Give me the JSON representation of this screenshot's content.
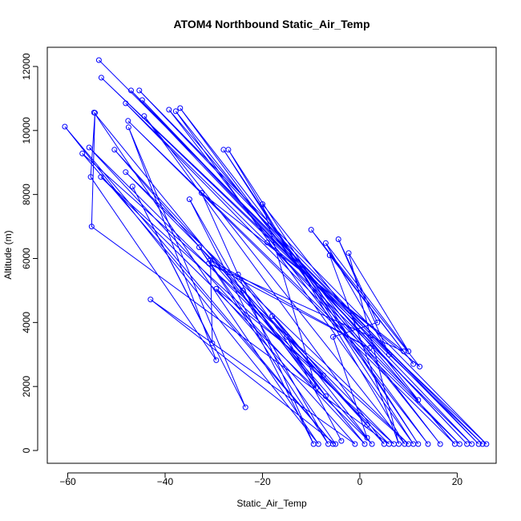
{
  "chart_data": {
    "type": "scatter",
    "title": "ATOM4 Northbound Static_Air_Temp",
    "xlabel": "Static_Air_Temp",
    "ylabel": "Altitude (m)",
    "xlim": [
      -64.2,
      28.0
    ],
    "ylim": [
      -400,
      12600
    ],
    "xticks": [
      -60,
      -40,
      -20,
      0,
      20
    ],
    "yticks": [
      0,
      2000,
      4000,
      6000,
      8000,
      10000,
      12000
    ],
    "x_tick_labels": [
      "−60",
      "−40",
      "−20",
      "0",
      "20"
    ],
    "y_tick_labels": [
      "0",
      "2000",
      "4000",
      "6000",
      "8000",
      "10000",
      "12000"
    ],
    "grid": false,
    "legend": "none",
    "color": "#0000ff",
    "series": [
      {
        "mode": "lines+markers",
        "x": [
          -53.6,
          25.2,
          -53.1,
          26.0,
          -45.3,
          24.4,
          -47.0,
          22.0,
          -44.7,
          23.0,
          -48.1,
          20.5,
          -47.6,
          19.5,
          -39.2,
          14.0,
          -36.9,
          16.5,
          -37.8,
          11.0,
          -28.0,
          12.0,
          -27.0,
          9.2,
          -44.3,
          5.0,
          -50.4,
          2.5,
          -53.2,
          7.0,
          -48.1,
          10.0,
          -57.0,
          -5.5,
          -60.6,
          -8.5,
          -54.6,
          1.0,
          -55.6,
          6.0,
          -55.1,
          -54.4,
          -55.3,
          -29.5,
          -47.5,
          -23.5,
          -46.7,
          -30.3,
          -30.7,
          2.0,
          -31.0,
          9.0,
          -32.5,
          -9.5,
          -35.0,
          -6.5,
          -33.0,
          -5.0,
          -43.0,
          -1.0,
          -29.5,
          -7.5,
          -25.0,
          -7.0,
          -24.0,
          -9.0,
          -20.0,
          12.0,
          -19.0,
          12.3,
          -10.0,
          11.0,
          -6.2,
          8.0,
          -2.3,
          10.0,
          -7.0,
          6.0,
          -4.4,
          3.6,
          -5.5,
          1.5,
          -18.0,
          1.5,
          -15.0,
          -3.8
        ],
        "y": [
          12200,
          200,
          11650,
          200,
          11250,
          200,
          11250,
          200,
          10950,
          200,
          10850,
          200,
          10300,
          200,
          10650,
          200,
          10700,
          200,
          10600,
          200,
          9400,
          200,
          9400,
          200,
          10450,
          200,
          9400,
          200,
          8550,
          200,
          8700,
          200,
          9280,
          200,
          10120,
          200,
          10560,
          200,
          9470,
          200,
          7000,
          10550,
          8550,
          2820,
          10100,
          1350,
          8250,
          3350,
          5950,
          3200,
          5850,
          3100,
          8050,
          200,
          7850,
          200,
          6350,
          200,
          4720,
          200,
          5050,
          2350,
          5500,
          1700,
          5000,
          1950,
          7700,
          1580,
          6500,
          2620,
          6900,
          2700,
          6100,
          200,
          6170,
          3100,
          6480,
          3000,
          6600,
          4000,
          3550,
          400,
          4200,
          800,
          3550,
          300
        ]
      }
    ]
  }
}
